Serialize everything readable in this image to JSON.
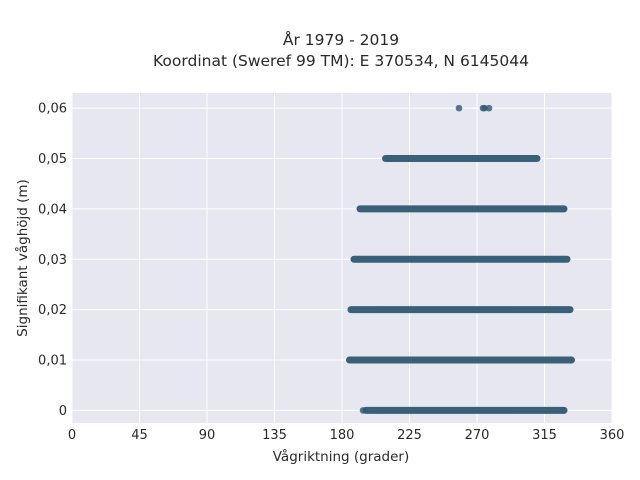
{
  "chart_data": {
    "type": "scatter",
    "title": "År 1979 - 2019",
    "subtitle": "Koordinat (Sweref 99 TM): E 370534, N 6145044",
    "xlabel": "Vågriktning (grader)",
    "ylabel": "Signifikant våghöjd (m)",
    "xlim": [
      0,
      360
    ],
    "ylim": [
      -0.0025,
      0.063
    ],
    "xticks": [
      0,
      45,
      90,
      135,
      180,
      225,
      270,
      315,
      360
    ],
    "xtick_labels": [
      "0",
      "45",
      "90",
      "135",
      "180",
      "225",
      "270",
      "315",
      "360"
    ],
    "yticks": [
      0,
      0.01,
      0.02,
      0.03,
      0.04,
      0.05,
      0.06
    ],
    "ytick_labels": [
      "0",
      "0,01",
      "0,02",
      "0,03",
      "0,04",
      "0,05",
      "0,06"
    ],
    "grid": true,
    "point_color": "#2f5871",
    "background_color": "#e6e7f0",
    "bands": [
      {
        "y": 0.0,
        "x_from": 196,
        "x_to": 328
      },
      {
        "y": 0.01,
        "x_from": 185,
        "x_to": 333
      },
      {
        "y": 0.02,
        "x_from": 186,
        "x_to": 332
      },
      {
        "y": 0.03,
        "x_from": 188,
        "x_to": 330
      },
      {
        "y": 0.04,
        "x_from": 192,
        "x_to": 328
      },
      {
        "y": 0.05,
        "x_from": 209,
        "x_to": 310
      }
    ],
    "outliers": [
      {
        "x": 258,
        "y": 0.06
      },
      {
        "x": 274,
        "y": 0.06
      },
      {
        "x": 275,
        "y": 0.06
      },
      {
        "x": 278,
        "y": 0.06
      },
      {
        "x": 194,
        "y": 0.0
      }
    ]
  }
}
